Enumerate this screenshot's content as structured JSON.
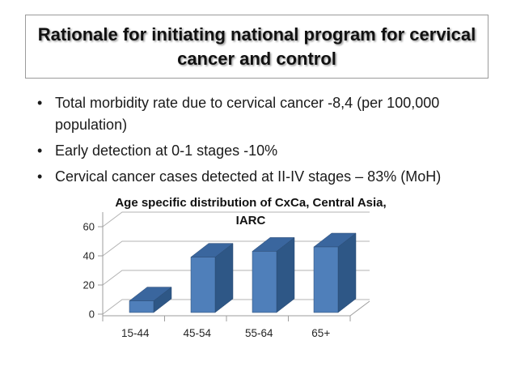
{
  "slide": {
    "title": "Rationale for initiating national program for cervical cancer and control",
    "title_color": "#111111",
    "bullets": [
      "Total morbidity rate due to cervical cancer -8,4 (per 100,000 population)",
      "Early detection at 0-1 stages -10%",
      "Cervical cancer cases detected at II-IV stages – 83% (MoH)"
    ],
    "bullet_glyph": "•"
  },
  "chart_data": {
    "type": "bar",
    "variant": "3d-column",
    "title": "Age specific distribution of CxCa, Central Asia, IARC",
    "title_lines": [
      "Age specific distribution of CxCa, Central Asia,",
      "IARC"
    ],
    "categories": [
      "15-44",
      "45-54",
      "55-64",
      "65+"
    ],
    "values": [
      8,
      38,
      42,
      45
    ],
    "yticks": [
      0,
      20,
      40,
      60
    ],
    "ylim": [
      0,
      60
    ],
    "xlabel": "",
    "ylabel": "",
    "grid": true,
    "legend": "none",
    "bar_color": "#4f7fba",
    "bar_top_color": "#3a669e",
    "bar_side_color": "#2e5786",
    "bar_edge_color": "#2a4a73",
    "grid_color": "#b3b3b3",
    "axis_color": "#9e9e9e"
  }
}
